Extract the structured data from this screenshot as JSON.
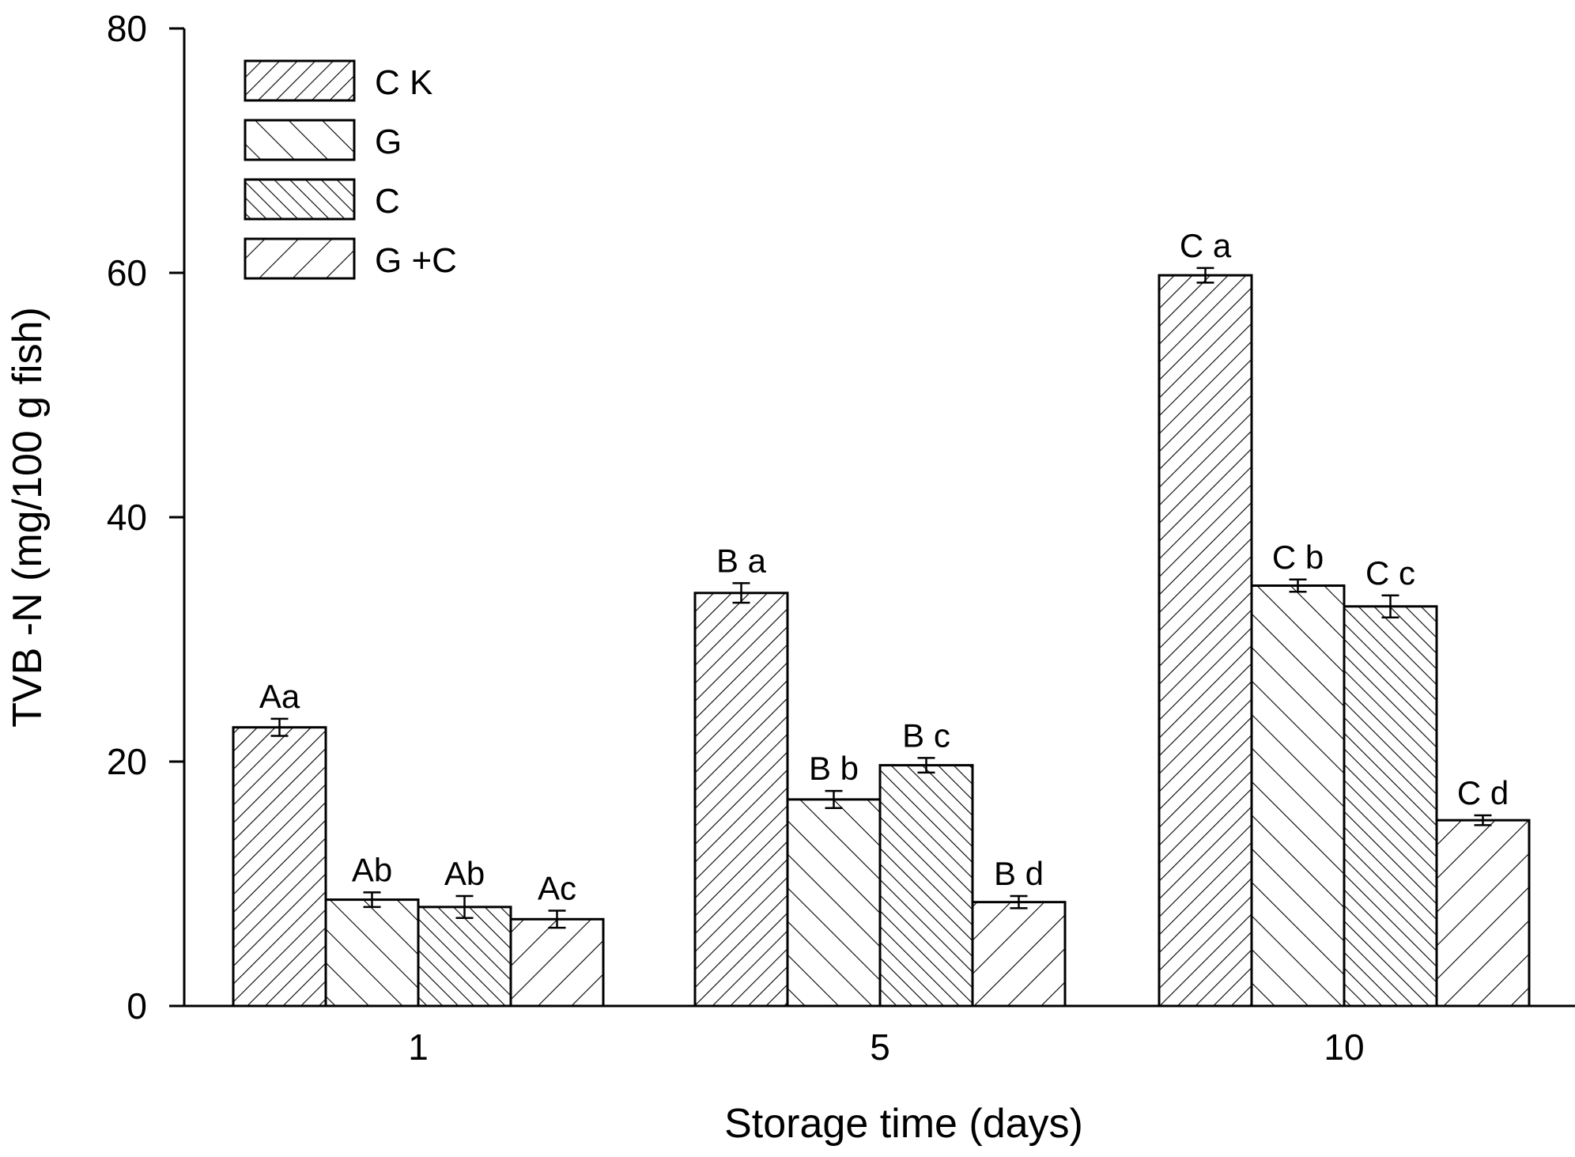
{
  "chart_data": {
    "type": "bar",
    "title": "",
    "xlabel": "Storage time (days)",
    "ylabel": "TVB -N (mg/100 g fish)",
    "categories": [
      "1",
      "5",
      "10"
    ],
    "ylim": [
      0,
      80
    ],
    "yticks": [
      "0",
      "20",
      "40",
      "60",
      "80"
    ],
    "grid": false,
    "legend_position": "top-left",
    "series": [
      {
        "name": "C K",
        "pattern": "dense-forward-hatch",
        "values": [
          22.8,
          33.8,
          59.8
        ],
        "errors": [
          0.7,
          0.8,
          0.6
        ],
        "labels": [
          "Aa",
          "B a",
          "C a"
        ]
      },
      {
        "name": "G",
        "pattern": "sparse-back-hatch",
        "values": [
          8.7,
          16.9,
          34.4
        ],
        "errors": [
          0.6,
          0.7,
          0.5
        ],
        "labels": [
          "Ab",
          "B b",
          "C b"
        ]
      },
      {
        "name": "C",
        "pattern": "dense-forward-hatch-alt",
        "values": [
          8.1,
          19.7,
          32.7
        ],
        "errors": [
          0.9,
          0.6,
          0.9
        ],
        "labels": [
          "Ab",
          "B c",
          "C c"
        ]
      },
      {
        "name": "G +C",
        "pattern": "sparse-forward-hatch",
        "values": [
          7.1,
          8.5,
          15.2
        ],
        "errors": [
          0.7,
          0.5,
          0.4
        ],
        "labels": [
          "Ac",
          "B d",
          "C d"
        ]
      }
    ]
  }
}
